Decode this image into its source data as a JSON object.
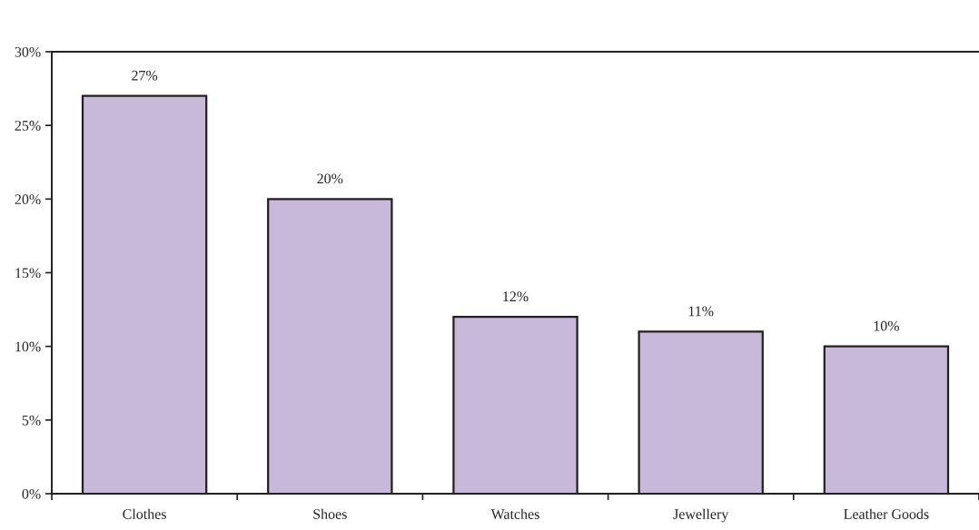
{
  "chart_data": {
    "type": "bar",
    "categories": [
      "Clothes",
      "Shoes",
      "Watches",
      "Jewellery",
      "Leather Goods"
    ],
    "values": [
      27,
      20,
      12,
      11,
      10
    ],
    "value_labels": [
      "27%",
      "20%",
      "12%",
      "11%",
      "10%"
    ],
    "color": "#c8b8da",
    "ylim": [
      0,
      30
    ],
    "yticks": [
      {
        "value": 0,
        "label": "0%"
      },
      {
        "value": 5,
        "label": "5%"
      },
      {
        "value": 10,
        "label": "10%"
      },
      {
        "value": 15,
        "label": "15%"
      },
      {
        "value": 20,
        "label": "20%"
      },
      {
        "value": 25,
        "label": "25%"
      },
      {
        "value": 30,
        "label": "30%"
      }
    ],
    "grid": false,
    "legend": false
  }
}
